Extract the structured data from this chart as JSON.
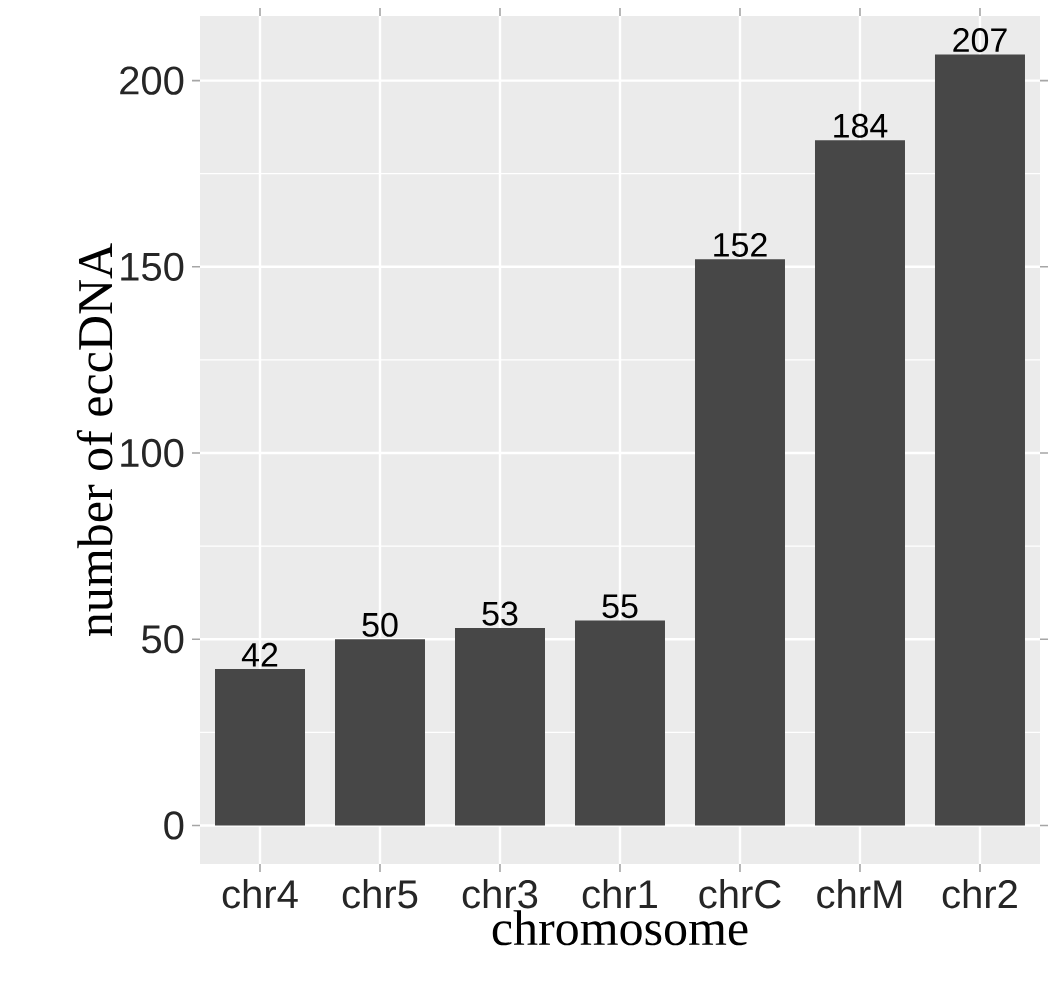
{
  "chart_data": {
    "type": "bar",
    "xlabel": "chromosome",
    "ylabel": "number of eccDNA",
    "categories": [
      "chr4",
      "chr5",
      "chr3",
      "chr1",
      "chrC",
      "chrM",
      "chr2"
    ],
    "values": [
      42,
      50,
      53,
      55,
      152,
      184,
      207
    ],
    "color": "#474747",
    "ylim": [
      -10.35,
      217.35
    ],
    "yticks": [
      0,
      50,
      100,
      150,
      200
    ],
    "grid": true,
    "data_labels": true
  }
}
